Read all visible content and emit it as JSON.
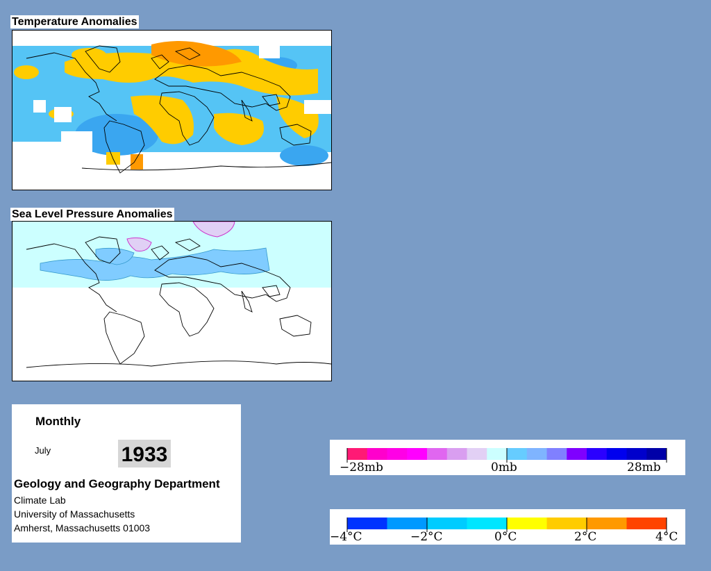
{
  "temperature_panel": {
    "title": "Temperature Anomalies"
  },
  "pressure_panel": {
    "title": "Sea Level Pressure Anomalies"
  },
  "info": {
    "mode": "Monthly",
    "month": "July",
    "year": "1933",
    "department": "Geology and Geography Department",
    "lab": "Climate Lab",
    "university": "University of Massachusetts",
    "address": "Amherst, Massachusetts 01003"
  },
  "pressure_legend": {
    "labels": [
      "−28mb",
      "0mb",
      "28mb"
    ],
    "colors": [
      "#ff1a75",
      "#ff00cc",
      "#ff00e6",
      "#ff00ff",
      "#e066f0",
      "#d99ef0",
      "#e2d0f5",
      "#ccffff",
      "#66ccff",
      "#7fb4ff",
      "#8080ff",
      "#7f00ff",
      "#2b00ff",
      "#0000ee",
      "#0000cc",
      "#0000a8"
    ]
  },
  "temperature_legend": {
    "labels": [
      "−4°C",
      "−2°C",
      "0°C",
      "2°C",
      "4°C"
    ],
    "colors": [
      "#0033ff",
      "#0099ff",
      "#00ccff",
      "#00e6ff",
      "#ffff00",
      "#ffcc00",
      "#ff9900",
      "#ff4400"
    ]
  },
  "colors": {
    "background": "#7a9cc6",
    "temp_cold": "#33b3ff",
    "temp_cool": "#66ccff",
    "temp_warm": "#ffcc00",
    "temp_hot": "#ff9900",
    "slp_light": "#ccffff",
    "slp_blue": "#80ccff",
    "slp_lilac": "#e0d0f5"
  }
}
